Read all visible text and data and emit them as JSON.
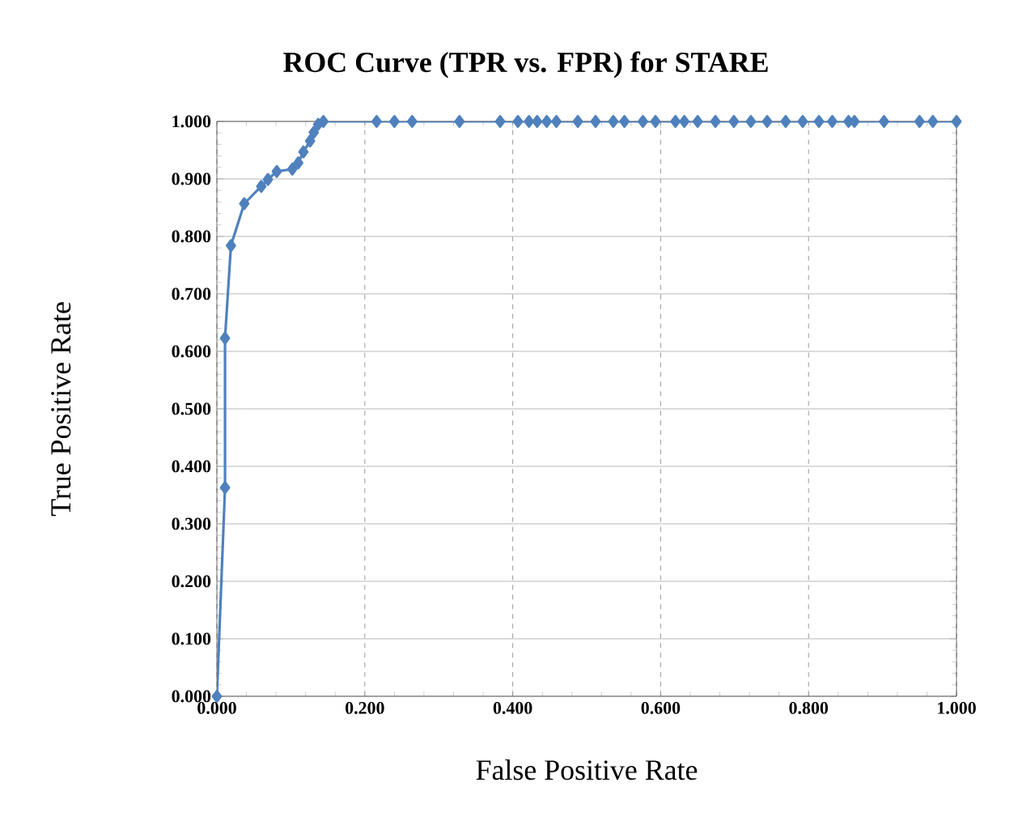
{
  "chart_data": {
    "type": "line",
    "title": "ROC Curve (TPR  vs. FPR) for STARE",
    "xlabel": "False Positive Rate",
    "ylabel": "True Positive Rate",
    "x": [
      0,
      0.011,
      0.011,
      0.019,
      0.037,
      0.06,
      0.069,
      0.081,
      0.102,
      0.11,
      0.117,
      0.126,
      0.131,
      0.137,
      0.144,
      0.216,
      0.24,
      0.264,
      0.328,
      0.383,
      0.407,
      0.422,
      0.433,
      0.446,
      0.459,
      0.488,
      0.512,
      0.536,
      0.551,
      0.576,
      0.593,
      0.62,
      0.632,
      0.65,
      0.674,
      0.699,
      0.722,
      0.744,
      0.769,
      0.792,
      0.814,
      0.832,
      0.854,
      0.862,
      0.902,
      0.95,
      0.968,
      1.0
    ],
    "series": [
      {
        "color": "#4f81bd",
        "values": [
          0,
          0.363,
          0.623,
          0.784,
          0.857,
          0.887,
          0.899,
          0.913,
          0.917,
          0.928,
          0.947,
          0.966,
          0.981,
          0.995,
          1,
          1,
          1,
          1,
          1,
          1,
          1,
          1,
          1,
          1,
          1,
          1,
          1,
          1,
          1,
          1,
          1,
          1,
          1,
          1,
          1,
          1,
          1,
          1,
          1,
          1,
          1,
          1,
          1,
          1,
          1,
          1,
          1,
          1
        ]
      }
    ],
    "xlim": [
      0,
      1
    ],
    "ylim": [
      0,
      1
    ],
    "xticks": [
      {
        "value": 0,
        "label": "0.000"
      },
      {
        "value": 0.2,
        "label": "0.200"
      },
      {
        "value": 0.4,
        "label": "0.400"
      },
      {
        "value": 0.6,
        "label": "0.600"
      },
      {
        "value": 0.8,
        "label": "0.800"
      },
      {
        "value": 1,
        "label": "1.000"
      }
    ],
    "yticks": [
      {
        "value": 0,
        "label": "0.000"
      },
      {
        "value": 0.1,
        "label": "0.100"
      },
      {
        "value": 0.2,
        "label": "0.200"
      },
      {
        "value": 0.3,
        "label": "0.300"
      },
      {
        "value": 0.4,
        "label": "0.400"
      },
      {
        "value": 0.5,
        "label": "0.500"
      },
      {
        "value": 0.6,
        "label": "0.600"
      },
      {
        "value": 0.7,
        "label": "0.700"
      },
      {
        "value": 0.8,
        "label": "0.800"
      },
      {
        "value": 0.9,
        "label": "0.900"
      },
      {
        "value": 1,
        "label": "1.000"
      }
    ],
    "grid": true,
    "marker": "diamond",
    "line_style": "solid"
  }
}
